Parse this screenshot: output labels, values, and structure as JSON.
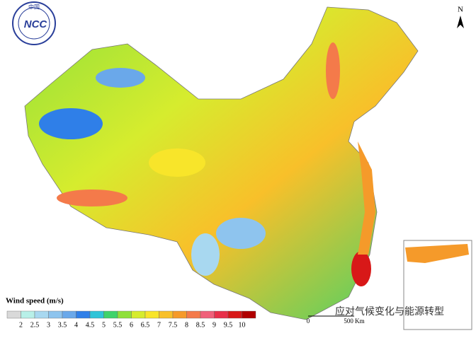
{
  "logo": {
    "country": "中国",
    "acronym": "NCC"
  },
  "north": "N",
  "legend": {
    "title": "Wind speed (m/s)",
    "colors": [
      "#d9d9d9",
      "#b8f0e8",
      "#a8d8f0",
      "#8ec4ee",
      "#6aa8ea",
      "#2f7fe8",
      "#2ec4d8",
      "#3ed36a",
      "#8fe03a",
      "#d6ec2e",
      "#f8e52a",
      "#f8c02a",
      "#f59a2a",
      "#f47a4a",
      "#f0607a",
      "#e8304a",
      "#d81818",
      "#b00000"
    ],
    "labels": [
      2,
      2.5,
      3,
      3.5,
      4,
      4.5,
      5,
      5.5,
      6,
      6.5,
      7,
      7.5,
      8,
      8.5,
      9,
      9.5,
      10
    ]
  },
  "scale_bar": {
    "start": 0,
    "end": "500 Km"
  },
  "watermark": "应对气候变化与能源转型"
}
